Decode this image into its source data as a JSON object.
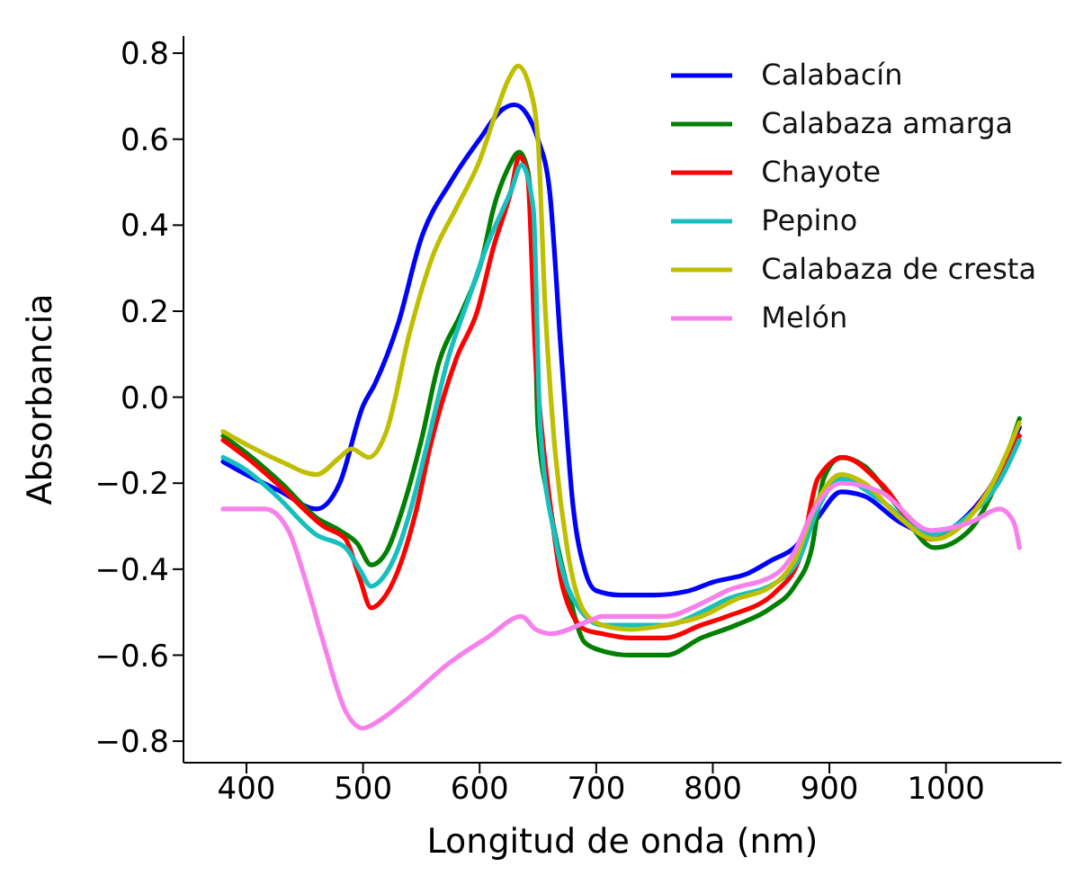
{
  "chart_data": {
    "type": "line",
    "xlabel": "Longitud de onda (nm)",
    "ylabel": "Absorbancia",
    "xlim": [
      346,
      1099
    ],
    "ylim": [
      -0.85,
      0.84
    ],
    "xticks": [
      400,
      500,
      600,
      700,
      800,
      900,
      1000
    ],
    "yticks": [
      {
        "value": -0.8,
        "label": "−0.8"
      },
      {
        "value": -0.6,
        "label": "−0.6"
      },
      {
        "value": -0.4,
        "label": "−0.4"
      },
      {
        "value": -0.2,
        "label": "−0.2"
      },
      {
        "value": 0,
        "label": "0.0"
      },
      {
        "value": 0.2,
        "label": "0.2"
      },
      {
        "value": 0.4,
        "label": "0.4"
      },
      {
        "value": 0.6,
        "label": "0.6"
      },
      {
        "value": 0.8,
        "label": "0.8"
      }
    ],
    "grid": false,
    "legend": "top right",
    "marker": "none",
    "line_style": "solid",
    "series": [
      {
        "name": "Calabacín",
        "color": "#0000ff",
        "x": [
          380,
          400,
          430,
          460,
          480,
          500,
          510,
          530,
          550,
          575,
          600,
          620,
          630,
          640,
          650,
          660,
          670,
          680,
          690,
          700,
          720,
          750,
          780,
          800,
          830,
          850,
          870,
          890,
          910,
          930,
          960,
          990,
          1020,
          1040,
          1063
        ],
        "values": [
          -0.15,
          -0.18,
          -0.22,
          -0.26,
          -0.2,
          -0.02,
          0.03,
          0.17,
          0.37,
          0.5,
          0.6,
          0.67,
          0.68,
          0.66,
          0.6,
          0.48,
          0.1,
          -0.25,
          -0.4,
          -0.45,
          -0.46,
          -0.46,
          -0.45,
          -0.43,
          -0.41,
          -0.38,
          -0.35,
          -0.28,
          -0.22,
          -0.23,
          -0.29,
          -0.32,
          -0.27,
          -0.2,
          -0.07
        ]
      },
      {
        "name": "Calabaza amarga",
        "color": "#008000",
        "x": [
          380,
          400,
          430,
          460,
          480,
          495,
          507,
          520,
          535,
          550,
          565,
          585,
          602,
          612,
          624,
          634,
          641,
          646,
          650,
          660,
          675,
          690,
          705,
          730,
          760,
          790,
          820,
          850,
          870,
          885,
          895,
          910,
          930,
          960,
          990,
          1020,
          1040,
          1063
        ],
        "values": [
          -0.09,
          -0.13,
          -0.2,
          -0.28,
          -0.31,
          -0.34,
          -0.39,
          -0.36,
          -0.25,
          -0.1,
          0.08,
          0.2,
          0.32,
          0.44,
          0.53,
          0.57,
          0.53,
          0.35,
          -0.07,
          -0.25,
          -0.44,
          -0.57,
          -0.59,
          -0.6,
          -0.6,
          -0.56,
          -0.53,
          -0.49,
          -0.44,
          -0.35,
          -0.19,
          -0.14,
          -0.16,
          -0.26,
          -0.35,
          -0.31,
          -0.22,
          -0.05
        ]
      },
      {
        "name": "Chayote",
        "color": "#ff0000",
        "x": [
          380,
          400,
          430,
          466,
          485,
          497,
          507,
          517,
          529,
          545,
          558,
          580,
          598,
          612,
          627,
          634,
          641,
          648,
          653,
          662,
          671,
          690,
          705,
          730,
          759,
          790,
          812,
          855,
          875,
          890,
          912,
          944,
          987,
          1022,
          1045,
          1063
        ],
        "values": [
          -0.1,
          -0.14,
          -0.21,
          -0.3,
          -0.33,
          -0.42,
          -0.49,
          -0.47,
          -0.41,
          -0.27,
          -0.11,
          0.09,
          0.2,
          0.35,
          0.48,
          0.56,
          0.52,
          0.09,
          -0.07,
          -0.28,
          -0.44,
          -0.54,
          -0.55,
          -0.56,
          -0.56,
          -0.53,
          -0.51,
          -0.45,
          -0.37,
          -0.19,
          -0.14,
          -0.2,
          -0.33,
          -0.27,
          -0.18,
          -0.09
        ]
      },
      {
        "name": "Pepino",
        "color": "#17bfbf",
        "x": [
          380,
          400,
          426,
          460,
          485,
          497,
          507,
          517,
          529,
          542,
          555,
          573,
          592,
          606,
          627,
          636,
          646,
          652,
          665,
          685,
          705,
          730,
          759,
          790,
          812,
          855,
          875,
          890,
          910,
          944,
          987,
          1022,
          1045,
          1063
        ],
        "values": [
          -0.14,
          -0.17,
          -0.23,
          -0.32,
          -0.35,
          -0.4,
          -0.44,
          -0.42,
          -0.36,
          -0.25,
          -0.11,
          0.09,
          0.24,
          0.35,
          0.48,
          0.54,
          0.44,
          -0.07,
          -0.33,
          -0.49,
          -0.53,
          -0.53,
          -0.53,
          -0.5,
          -0.47,
          -0.43,
          -0.37,
          -0.26,
          -0.19,
          -0.24,
          -0.32,
          -0.27,
          -0.2,
          -0.1
        ]
      },
      {
        "name": "Calabaza de cresta",
        "color": "#bfbf00",
        "x": [
          380,
          400,
          430,
          460,
          480,
          490,
          505,
          520,
          540,
          560,
          580,
          600,
          615,
          625,
          633,
          643,
          650,
          656,
          663,
          675,
          690,
          705,
          730,
          760,
          790,
          820,
          850,
          870,
          890,
          910,
          930,
          960,
          990,
          1020,
          1040,
          1063
        ],
        "values": [
          -0.08,
          -0.11,
          -0.15,
          -0.18,
          -0.14,
          -0.12,
          -0.14,
          -0.08,
          0.15,
          0.33,
          0.44,
          0.55,
          0.67,
          0.74,
          0.77,
          0.72,
          0.6,
          0.22,
          -0.07,
          -0.35,
          -0.5,
          -0.53,
          -0.54,
          -0.53,
          -0.51,
          -0.47,
          -0.44,
          -0.38,
          -0.24,
          -0.18,
          -0.2,
          -0.28,
          -0.33,
          -0.28,
          -0.2,
          -0.06
        ]
      },
      {
        "name": "Melón",
        "color": "#f780ec",
        "x": [
          380,
          400,
          416,
          436,
          450,
          466,
          485,
          500,
          515,
          539,
          573,
          606,
          636,
          648,
          661,
          694,
          705,
          730,
          759,
          790,
          812,
          855,
          870,
          885,
          910,
          944,
          987,
          1022,
          1046,
          1058,
          1063
        ],
        "values": [
          -0.26,
          -0.26,
          -0.26,
          -0.31,
          -0.42,
          -0.57,
          -0.73,
          -0.77,
          -0.75,
          -0.7,
          -0.62,
          -0.56,
          -0.51,
          -0.54,
          -0.55,
          -0.52,
          -0.51,
          -0.51,
          -0.51,
          -0.48,
          -0.45,
          -0.41,
          -0.36,
          -0.27,
          -0.2,
          -0.22,
          -0.31,
          -0.29,
          -0.26,
          -0.29,
          -0.35
        ]
      }
    ]
  }
}
